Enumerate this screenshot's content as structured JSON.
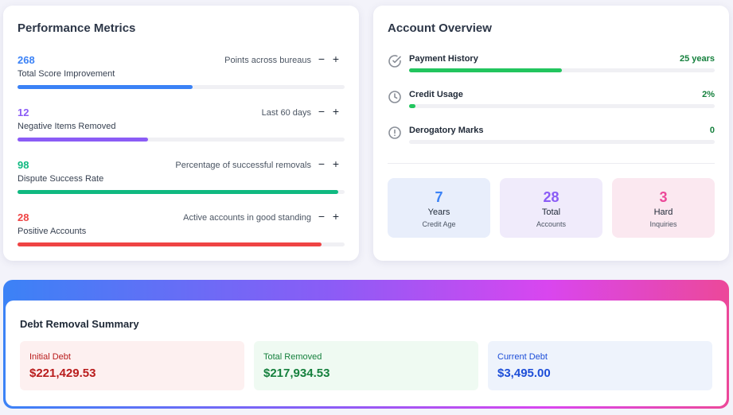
{
  "performance": {
    "title": "Performance Metrics",
    "metrics": [
      {
        "value": "268",
        "label": "Total Score Improvement",
        "desc": "Points across bureaus",
        "color": "#3b82f6",
        "progress": 0.535
      },
      {
        "value": "12",
        "label": "Negative Items Removed",
        "desc": "Last 60 days",
        "color": "#8b5cf6",
        "progress": 0.4
      },
      {
        "value": "98",
        "label": "Dispute Success Rate",
        "desc": "Percentage of successful removals",
        "color": "#10b981",
        "progress": 0.98
      },
      {
        "value": "28",
        "label": "Positive Accounts",
        "desc": "Active accounts in good standing",
        "color": "#ef4444",
        "progress": 0.93
      }
    ],
    "minus_symbol": "−",
    "plus_symbol": "+"
  },
  "account": {
    "title": "Account Overview",
    "rows": [
      {
        "label": "Payment History",
        "value": "25 years",
        "icon": "check-circle-icon",
        "progress": 0.5,
        "color": "#22c55e"
      },
      {
        "label": "Credit Usage",
        "value": "2%",
        "icon": "clock-icon",
        "progress": 0.02,
        "color": "#22c55e"
      },
      {
        "label": "Derogatory Marks",
        "value": "0",
        "icon": "alert-circle-icon",
        "progress": 0.0,
        "color": "#22c55e"
      }
    ],
    "stats": [
      {
        "number": "7",
        "unit": "Years",
        "sub": "Credit Age",
        "color": "#3b82f6",
        "bg": "#e8eefb"
      },
      {
        "number": "28",
        "unit": "Total",
        "sub": "Accounts",
        "color": "#8b5cf6",
        "bg": "#f0ebfb"
      },
      {
        "number": "3",
        "unit": "Hard",
        "sub": "Inquiries",
        "color": "#ec4899",
        "bg": "#fbe8f0"
      }
    ]
  },
  "debt": {
    "title": "Debt Removal Summary",
    "boxes": [
      {
        "label": "Initial Debt",
        "amount": "$221,429.53",
        "color": "#b91c1c",
        "bg": "#fdf0f0"
      },
      {
        "label": "Total Removed",
        "amount": "$217,934.53",
        "color": "#15803d",
        "bg": "#effaf2"
      },
      {
        "label": "Current Debt",
        "amount": "$3,495.00",
        "color": "#1d4ed8",
        "bg": "#eef3fc"
      }
    ]
  }
}
